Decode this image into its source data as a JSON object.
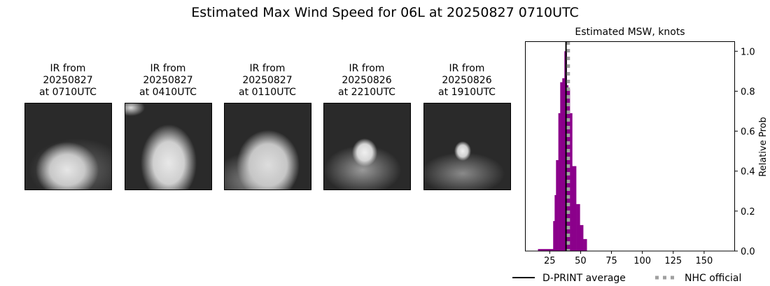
{
  "title": "Estimated Max Wind Speed for 06L at 20250827 0710UTC",
  "ir_panels": [
    {
      "line1": "IR from",
      "line2": "20250827",
      "line3": "at 0710UTC"
    },
    {
      "line1": "IR from",
      "line2": "20250827",
      "line3": "at 0410UTC"
    },
    {
      "line1": "IR from",
      "line2": "20250827",
      "line3": "at 0110UTC"
    },
    {
      "line1": "IR from",
      "line2": "20250826",
      "line3": "at 2210UTC"
    },
    {
      "line1": "IR from",
      "line2": "20250826",
      "line3": "at 1910UTC"
    }
  ],
  "chart_data": {
    "type": "bar",
    "title": "Estimated MSW, knots",
    "xlabel": "",
    "ylabel": "Relative Prob",
    "xlim": [
      5,
      175
    ],
    "ylim": [
      0,
      1.05
    ],
    "xticks": [
      25,
      50,
      75,
      100,
      125,
      150
    ],
    "yticks": [
      0.0,
      0.2,
      0.4,
      0.6,
      0.8,
      1.0
    ],
    "ytick_labels": [
      "0.0",
      "0.2",
      "0.4",
      "0.6",
      "0.8",
      "1.0"
    ],
    "y_axis_side": "right",
    "grid": false,
    "bar_color": "#8b008b",
    "bins": [
      {
        "x0": 15.5,
        "x1": 27.8,
        "p": 0.01
      },
      {
        "x0": 27.8,
        "x1": 29.0,
        "p": 0.15
      },
      {
        "x0": 29.0,
        "x1": 30.1,
        "p": 0.28
      },
      {
        "x0": 30.1,
        "x1": 32.0,
        "p": 0.455
      },
      {
        "x0": 32.0,
        "x1": 33.5,
        "p": 0.69
      },
      {
        "x0": 33.5,
        "x1": 35.2,
        "p": 0.845
      },
      {
        "x0": 35.2,
        "x1": 36.9,
        "p": 0.865
      },
      {
        "x0": 36.9,
        "x1": 38.8,
        "p": 1.0
      },
      {
        "x0": 38.8,
        "x1": 40.0,
        "p": 0.83
      },
      {
        "x0": 40.0,
        "x1": 41.3,
        "p": 0.81
      },
      {
        "x0": 41.3,
        "x1": 43.2,
        "p": 0.69
      },
      {
        "x0": 43.2,
        "x1": 46.4,
        "p": 0.425
      },
      {
        "x0": 46.4,
        "x1": 49.4,
        "p": 0.235
      },
      {
        "x0": 49.4,
        "x1": 52.1,
        "p": 0.13
      },
      {
        "x0": 52.1,
        "x1": 55.0,
        "p": 0.06
      }
    ],
    "dprint_average": 38.2,
    "nhc_official": 40,
    "dprint_color": "#000000",
    "nhc_color": "#a0a0a0",
    "legend": [
      {
        "label": "D-PRINT average",
        "style": "solid-black"
      },
      {
        "label": "NHC official",
        "style": "dotted-gray"
      }
    ],
    "legend_placement": "bottom"
  }
}
